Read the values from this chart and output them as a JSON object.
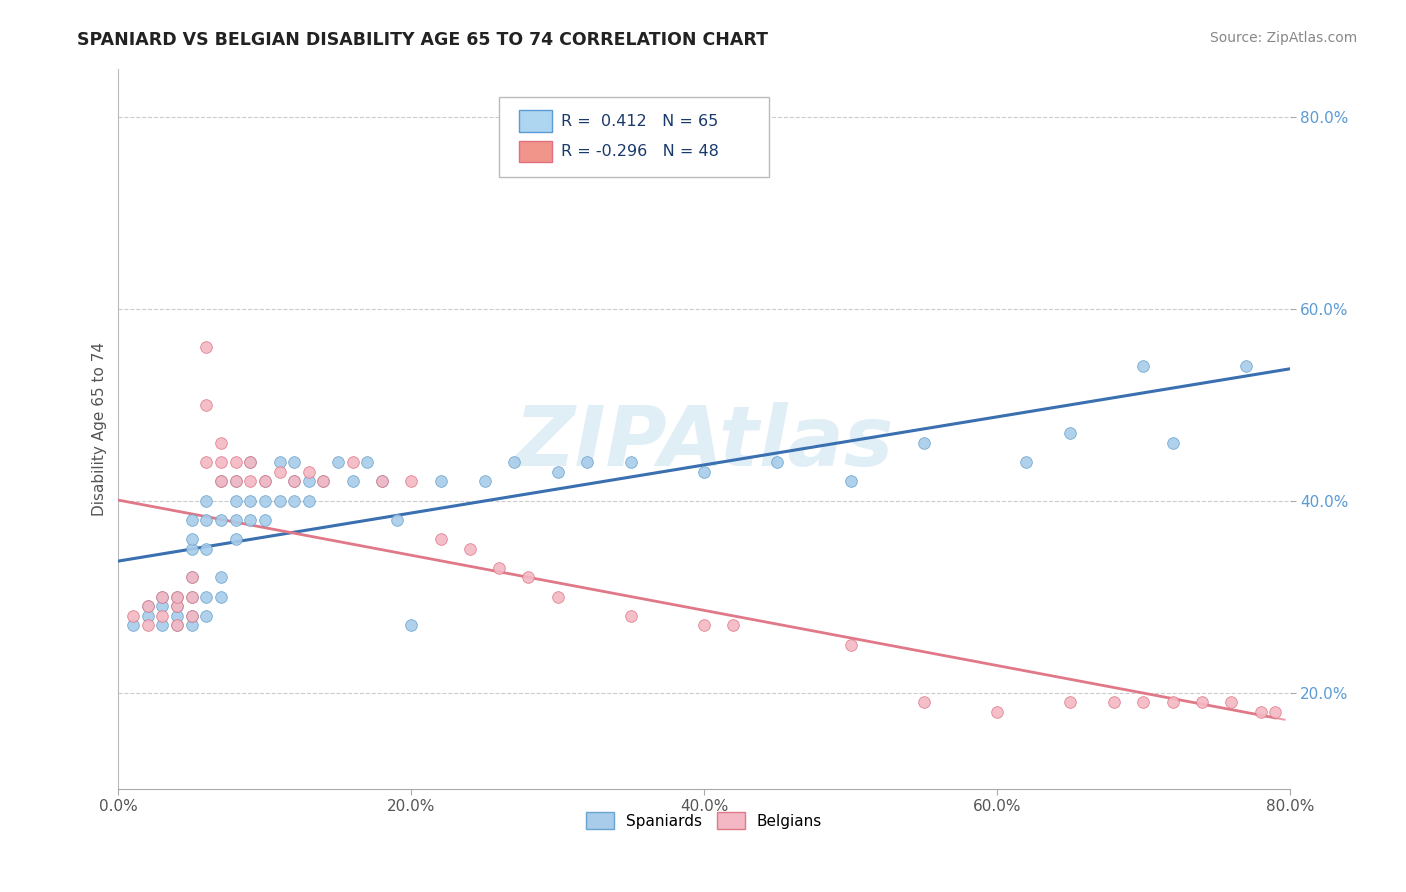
{
  "title": "SPANIARD VS BELGIAN DISABILITY AGE 65 TO 74 CORRELATION CHART",
  "source_text": "Source: ZipAtlas.com",
  "ylabel": "Disability Age 65 to 74",
  "watermark": "ZIPAtlas",
  "xlim": [
    0.0,
    0.8
  ],
  "ylim": [
    0.1,
    0.85
  ],
  "xticks": [
    0.0,
    0.2,
    0.4,
    0.6,
    0.8
  ],
  "yticks_right": [
    0.2,
    0.4,
    0.6,
    0.8
  ],
  "spaniards_color": "#A8CCEA",
  "spaniards_edge_color": "#6AA3CC",
  "belgians_color": "#F4B8C4",
  "belgians_edge_color": "#E07888",
  "spaniards_line_color": "#3A6FB0",
  "belgians_line_color": "#E07888",
  "R_spaniards": 0.412,
  "N_spaniards": 65,
  "R_belgians": -0.296,
  "N_belgians": 48,
  "spaniards_x": [
    0.01,
    0.02,
    0.02,
    0.03,
    0.03,
    0.03,
    0.04,
    0.04,
    0.04,
    0.04,
    0.05,
    0.05,
    0.05,
    0.05,
    0.05,
    0.05,
    0.05,
    0.06,
    0.06,
    0.06,
    0.06,
    0.06,
    0.07,
    0.07,
    0.07,
    0.07,
    0.08,
    0.08,
    0.08,
    0.08,
    0.09,
    0.09,
    0.09,
    0.1,
    0.1,
    0.1,
    0.11,
    0.11,
    0.12,
    0.12,
    0.12,
    0.13,
    0.13,
    0.14,
    0.15,
    0.16,
    0.17,
    0.18,
    0.19,
    0.2,
    0.22,
    0.25,
    0.27,
    0.3,
    0.32,
    0.35,
    0.4,
    0.45,
    0.5,
    0.55,
    0.62,
    0.65,
    0.7,
    0.72,
    0.77
  ],
  "spaniards_y": [
    0.27,
    0.28,
    0.29,
    0.27,
    0.29,
    0.3,
    0.27,
    0.28,
    0.29,
    0.3,
    0.27,
    0.28,
    0.3,
    0.32,
    0.35,
    0.36,
    0.38,
    0.28,
    0.3,
    0.35,
    0.38,
    0.4,
    0.3,
    0.32,
    0.38,
    0.42,
    0.36,
    0.38,
    0.4,
    0.42,
    0.38,
    0.4,
    0.44,
    0.38,
    0.4,
    0.42,
    0.4,
    0.44,
    0.4,
    0.42,
    0.44,
    0.4,
    0.42,
    0.42,
    0.44,
    0.42,
    0.44,
    0.42,
    0.38,
    0.27,
    0.42,
    0.42,
    0.44,
    0.43,
    0.44,
    0.44,
    0.43,
    0.44,
    0.42,
    0.46,
    0.44,
    0.47,
    0.54,
    0.46,
    0.54
  ],
  "belgians_x": [
    0.01,
    0.02,
    0.02,
    0.03,
    0.03,
    0.04,
    0.04,
    0.04,
    0.05,
    0.05,
    0.05,
    0.06,
    0.06,
    0.06,
    0.07,
    0.07,
    0.07,
    0.08,
    0.08,
    0.09,
    0.09,
    0.1,
    0.11,
    0.12,
    0.13,
    0.14,
    0.16,
    0.18,
    0.2,
    0.22,
    0.24,
    0.26,
    0.28,
    0.3,
    0.35,
    0.4,
    0.42,
    0.5,
    0.55,
    0.6,
    0.65,
    0.68,
    0.7,
    0.72,
    0.74,
    0.76,
    0.78,
    0.79
  ],
  "belgians_y": [
    0.28,
    0.27,
    0.29,
    0.28,
    0.3,
    0.27,
    0.29,
    0.3,
    0.28,
    0.3,
    0.32,
    0.44,
    0.5,
    0.56,
    0.42,
    0.44,
    0.46,
    0.42,
    0.44,
    0.42,
    0.44,
    0.42,
    0.43,
    0.42,
    0.43,
    0.42,
    0.44,
    0.42,
    0.42,
    0.36,
    0.35,
    0.33,
    0.32,
    0.3,
    0.28,
    0.27,
    0.27,
    0.25,
    0.19,
    0.18,
    0.19,
    0.19,
    0.19,
    0.19,
    0.19,
    0.19,
    0.18,
    0.18
  ],
  "bg_color": "#FFFFFF",
  "grid_color": "#CCCCCC"
}
